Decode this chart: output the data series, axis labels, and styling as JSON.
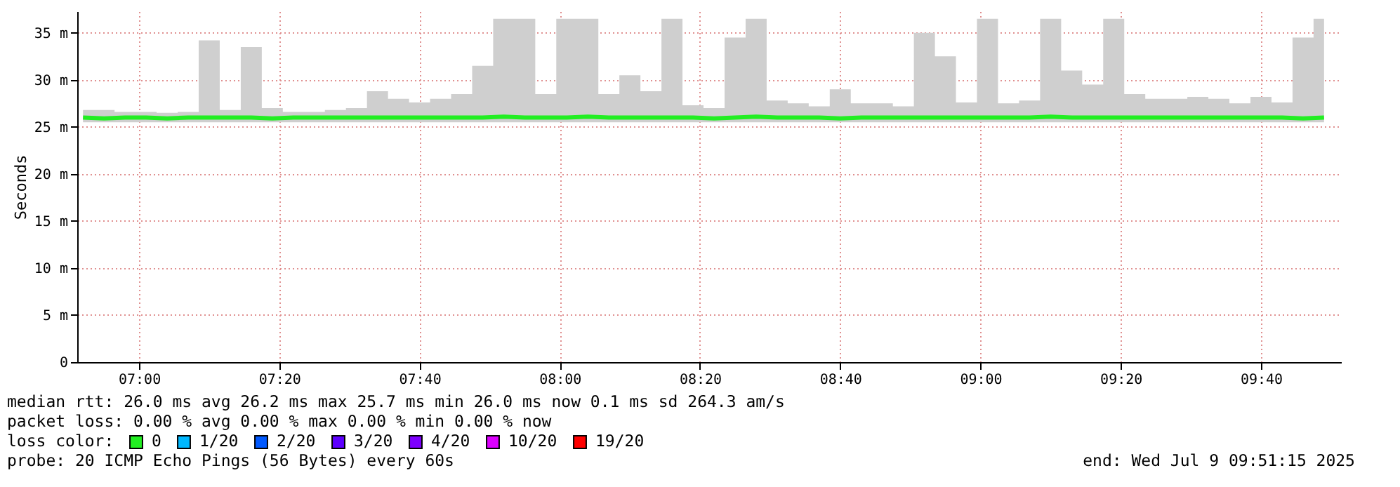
{
  "chart_data": {
    "type": "line",
    "ylabel": "Seconds",
    "x": [
      6.8667,
      6.9167,
      6.9667,
      7.0167,
      7.0667,
      7.1167,
      7.1667,
      7.2167,
      7.2667,
      7.3167,
      7.3667,
      7.4167,
      7.4667,
      7.5167,
      7.5667,
      7.6167,
      7.6667,
      7.7167,
      7.7667,
      7.8167,
      7.8667,
      7.9167,
      7.9667,
      8.0167,
      8.0667,
      8.1167,
      8.1667,
      8.2167,
      8.2667,
      8.3167,
      8.3667,
      8.4167,
      8.4667,
      8.5167,
      8.5667,
      8.6167,
      8.6667,
      8.7167,
      8.7667,
      8.8167,
      8.8667,
      8.9167,
      8.9667,
      9.0167,
      9.0667,
      9.1167,
      9.1667,
      9.2167,
      9.2667,
      9.3167,
      9.3667,
      9.4167,
      9.4667,
      9.5167,
      9.5667,
      9.6167,
      9.6667,
      9.7167,
      9.7667,
      9.8167
    ],
    "series": [
      {
        "name": "0",
        "color": "#22ee22",
        "lower": [
          25.5,
          25.5,
          25.5,
          25.5,
          25.5,
          25.5,
          25.5,
          25.5,
          25.5,
          25.5,
          25.5,
          25.5,
          25.5,
          25.5,
          25.5,
          25.5,
          25.5,
          25.5,
          25.5,
          25.5,
          25.5,
          25.5,
          25.5,
          25.5,
          25.5,
          25.5,
          25.5,
          25.5,
          25.5,
          25.5,
          25.5,
          25.5,
          25.5,
          25.5,
          25.5,
          25.5,
          25.5,
          25.5,
          25.5,
          25.5,
          25.5,
          25.5,
          25.5,
          25.5,
          25.5,
          25.5,
          25.5,
          25.5,
          25.5,
          25.5,
          25.5,
          25.5,
          25.5,
          25.5,
          25.5,
          25.5,
          25.5,
          25.5,
          25.5,
          25.5
        ],
        "upper": [
          26.8,
          26.8,
          26.6,
          26.6,
          26.5,
          26.6,
          34.2,
          26.8,
          33.5,
          27.0,
          26.6,
          26.6,
          26.8,
          27.0,
          28.8,
          28.0,
          27.6,
          28.0,
          28.5,
          31.5,
          36.5,
          36.5,
          28.5,
          36.5,
          36.5,
          28.5,
          30.5,
          28.8,
          36.5,
          27.3,
          27.0,
          34.5,
          36.5,
          27.8,
          27.5,
          27.2,
          29.0,
          27.5,
          27.5,
          27.2,
          35.0,
          32.5,
          27.6,
          36.5,
          27.5,
          27.8,
          36.5,
          31.0,
          29.5,
          36.5,
          28.5,
          28.0,
          28.0,
          28.2,
          28.0,
          27.5,
          28.2,
          27.6,
          34.5,
          36.5
        ],
        "values": [
          26.0,
          25.9,
          26.0,
          26.0,
          25.9,
          26.0,
          26.0,
          26.0,
          26.0,
          25.9,
          26.0,
          26.0,
          26.0,
          26.0,
          26.0,
          26.0,
          26.0,
          26.0,
          26.0,
          26.0,
          26.1,
          26.0,
          26.0,
          26.0,
          26.1,
          26.0,
          26.0,
          26.0,
          26.0,
          26.0,
          25.9,
          26.0,
          26.1,
          26.0,
          26.0,
          26.0,
          25.9,
          26.0,
          26.0,
          26.0,
          26.0,
          26.0,
          26.0,
          26.0,
          26.0,
          26.0,
          26.1,
          26.0,
          26.0,
          26.0,
          26.0,
          26.0,
          26.0,
          26.0,
          26.0,
          26.0,
          26.0,
          26.0,
          25.9,
          26.0
        ]
      },
      {
        "name": "1/20",
        "color": "#00b8ff",
        "values": [
          null,
          null,
          null,
          null,
          null,
          null,
          null,
          null,
          null,
          null,
          null,
          null,
          null,
          null,
          null,
          null,
          null,
          null,
          null,
          null,
          null,
          null,
          null,
          null,
          null,
          null,
          null,
          null,
          null,
          null,
          null,
          null,
          null,
          null,
          null,
          null,
          null,
          null,
          null,
          null,
          null,
          null,
          null,
          null,
          null,
          null,
          null,
          null,
          null,
          null,
          null,
          null,
          null,
          null,
          null,
          null,
          null,
          null,
          null,
          null
        ]
      },
      {
        "name": "2/20",
        "color": "#0059ff",
        "values": [
          null,
          null,
          null,
          null,
          null,
          null,
          null,
          null,
          null,
          null,
          null,
          null,
          null,
          null,
          null,
          null,
          null,
          null,
          null,
          null,
          null,
          null,
          null,
          null,
          null,
          null,
          null,
          null,
          null,
          null,
          null,
          null,
          null,
          null,
          null,
          null,
          null,
          null,
          null,
          null,
          null,
          null,
          null,
          null,
          null,
          null,
          null,
          null,
          null,
          null,
          null,
          null,
          null,
          null,
          null,
          null,
          null,
          null,
          null,
          null
        ]
      },
      {
        "name": "3/20",
        "color": "#5e00ff",
        "values": [
          null,
          null,
          null,
          null,
          null,
          null,
          null,
          null,
          null,
          null,
          null,
          null,
          null,
          null,
          null,
          null,
          null,
          null,
          null,
          null,
          null,
          null,
          null,
          null,
          null,
          null,
          null,
          null,
          null,
          null,
          null,
          null,
          null,
          null,
          null,
          null,
          null,
          null,
          null,
          null,
          null,
          null,
          null,
          null,
          null,
          null,
          null,
          null,
          null,
          null,
          null,
          null,
          null,
          null,
          null,
          null,
          null,
          null,
          null,
          null
        ]
      },
      {
        "name": "4/20",
        "color": "#7e00ff",
        "values": [
          null,
          null,
          null,
          null,
          null,
          null,
          null,
          null,
          null,
          null,
          null,
          null,
          null,
          null,
          null,
          null,
          null,
          null,
          null,
          null,
          null,
          null,
          null,
          null,
          null,
          null,
          null,
          null,
          null,
          null,
          null,
          null,
          null,
          null,
          null,
          null,
          null,
          null,
          null,
          null,
          null,
          null,
          null,
          null,
          null,
          null,
          null,
          null,
          null,
          null,
          null,
          null,
          null,
          null,
          null,
          null,
          null,
          null,
          null,
          null
        ]
      },
      {
        "name": "10/20",
        "color": "#dd00ff",
        "values": [
          null,
          null,
          null,
          null,
          null,
          null,
          null,
          null,
          null,
          null,
          null,
          null,
          null,
          null,
          null,
          null,
          null,
          null,
          null,
          null,
          null,
          null,
          null,
          null,
          null,
          null,
          null,
          null,
          null,
          null,
          null,
          null,
          null,
          null,
          null,
          null,
          null,
          null,
          null,
          null,
          null,
          null,
          null,
          null,
          null,
          null,
          null,
          null,
          null,
          null,
          null,
          null,
          null,
          null,
          null,
          null,
          null,
          null,
          null,
          null
        ]
      },
      {
        "name": "19/20",
        "color": "#ff0000",
        "values": [
          null,
          null,
          null,
          null,
          null,
          null,
          null,
          null,
          null,
          null,
          null,
          null,
          null,
          null,
          null,
          null,
          null,
          null,
          null,
          null,
          null,
          null,
          null,
          null,
          null,
          null,
          null,
          null,
          null,
          null,
          null,
          null,
          null,
          null,
          null,
          null,
          null,
          null,
          null,
          null,
          null,
          null,
          null,
          null,
          null,
          null,
          null,
          null,
          null,
          null,
          null,
          null,
          null,
          null,
          null,
          null,
          null,
          null,
          null,
          null
        ]
      }
    ],
    "legend": "bottom",
    "legend_title": "loss color:",
    "xlim": [
      6.853,
      9.857
    ],
    "xticks": [
      {
        "value": 7,
        "label": "07:00"
      },
      {
        "value": 7.3333,
        "label": "07:20"
      },
      {
        "value": 7.6667,
        "label": "07:40"
      },
      {
        "value": 8,
        "label": "08:00"
      },
      {
        "value": 8.3333,
        "label": "08:20"
      },
      {
        "value": 8.6667,
        "label": "08:40"
      },
      {
        "value": 9,
        "label": "09:00"
      },
      {
        "value": 9.3333,
        "label": "09:20"
      },
      {
        "value": 9.6667,
        "label": "09:40"
      }
    ],
    "ylim": [
      0,
      37.3
    ],
    "yticks": [
      0,
      {
        "value": 5,
        "label": "5 m"
      },
      {
        "value": 10,
        "label": "10 m"
      },
      {
        "value": 15,
        "label": "15 m"
      },
      {
        "value": 20,
        "label": "20 m"
      },
      {
        "value": 25,
        "label": "25 m"
      },
      {
        "value": 30,
        "label": "30 m"
      },
      {
        "value": 35,
        "label": "35 m"
      }
    ],
    "grid": true,
    "annotations": [
      "median rtt:  26.0 ms avg  26.2 ms max  25.7 ms min  26.0 ms now  0.1 ms sd  264.3   am/s",
      "packet loss: 0.00 % avg  0.00 % max  0.00 % min  0.00 % now",
      "probe:       20 ICMP Echo Pings (56 Bytes) every 60s",
      "end: Wed Jul  9 09:51:15 2025"
    ]
  }
}
